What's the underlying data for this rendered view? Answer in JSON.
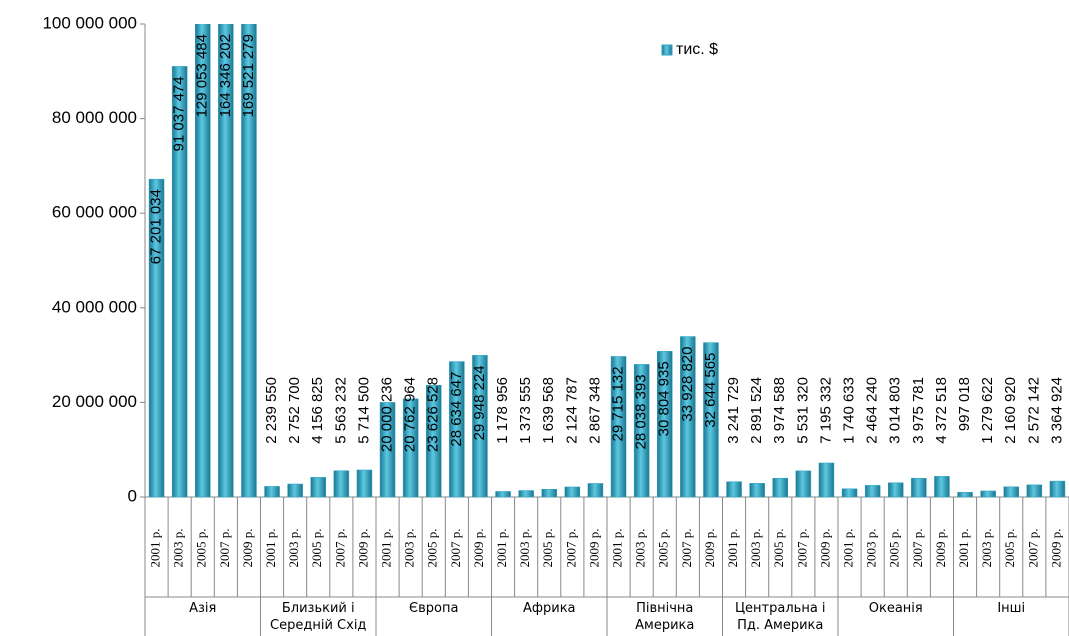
{
  "chart_data": {
    "type": "bar",
    "series": [
      {
        "name": "тис. $",
        "color": "#2ea6c4",
        "values": [
          67201034,
          91037474,
          129053484,
          164346202,
          169521279,
          2239550,
          2752700,
          4156825,
          5563232,
          5714500,
          20000236,
          20762964,
          23626528,
          28634647,
          29948224,
          1178956,
          1373555,
          1639568,
          2124787,
          2867348,
          29715132,
          28038393,
          30804935,
          33928820,
          32644565,
          3241729,
          2891524,
          3974588,
          5531320,
          7195332,
          1740633,
          2464240,
          3014803,
          3975781,
          4372518,
          997018,
          1279622,
          2160920,
          2572142,
          3364924
        ],
        "value_labels": [
          "67 201 034",
          "91 037 474",
          "129 053 484",
          "164 346 202",
          "169 521 279",
          "2 239 550",
          "2 752 700",
          "4 156 825",
          "5 563 232",
          "5 714 500",
          "20 000 236",
          "20 762 964",
          "23 626 528",
          "28 634 647",
          "29 948 224",
          "1 178 956",
          "1 373 555",
          "1 639 568",
          "2 124 787",
          "2 867 348",
          "29 715 132",
          "28 038 393",
          "30 804 935",
          "33 928 820",
          "32 644 565",
          "3 241 729",
          "2 891 524",
          "3 974 588",
          "5 531 320",
          "7 195 332",
          "1 740 633",
          "2 464 240",
          "3 014 803",
          "3 975 781",
          "4 372 518",
          "997 018",
          "1 279 622",
          "2 160 920",
          "2 572 142",
          "3 364 924"
        ]
      }
    ],
    "categories": [
      "2001 р.",
      "2003 р.",
      "2005 р.",
      "2007 р.",
      "2009 р.",
      "2001 р.",
      "2003 р.",
      "2005 р.",
      "2007 р.",
      "2009 р.",
      "2001 р.",
      "2003 р.",
      "2005 р.",
      "2007 р.",
      "2009 р.",
      "2001 р.",
      "2003 р.",
      "2005 р.",
      "2007 р.",
      "2009 р.",
      "2001 р.",
      "2003 р.",
      "2005 р.",
      "2007 р.",
      "2009 р.",
      "2001 р.",
      "2003 р.",
      "2005 р.",
      "2007 р.",
      "2009 р.",
      "2001 р.",
      "2003 р.",
      "2005 р.",
      "2007 р.",
      "2009 р.",
      "2001 р.",
      "2003 р.",
      "2005 р.",
      "2007 р.",
      "2009 р."
    ],
    "groups": [
      "Азія",
      "Близький і Середній Схід",
      "Європа",
      "Африка",
      "Північна Америка",
      "Центральна і Пд. Америка",
      "Океанія",
      "Інші"
    ],
    "ylim": [
      0,
      100000000
    ],
    "yticks": [
      {
        "value": 0,
        "label": "0"
      },
      {
        "value": 20000000,
        "label": "20 000 000"
      },
      {
        "value": 40000000,
        "label": "40 000 000"
      },
      {
        "value": 60000000,
        "label": "60 000 000"
      },
      {
        "value": 80000000,
        "label": "80 000 000"
      },
      {
        "value": 100000000,
        "label": "100 000 000"
      }
    ],
    "grid": false,
    "legend": "top"
  }
}
